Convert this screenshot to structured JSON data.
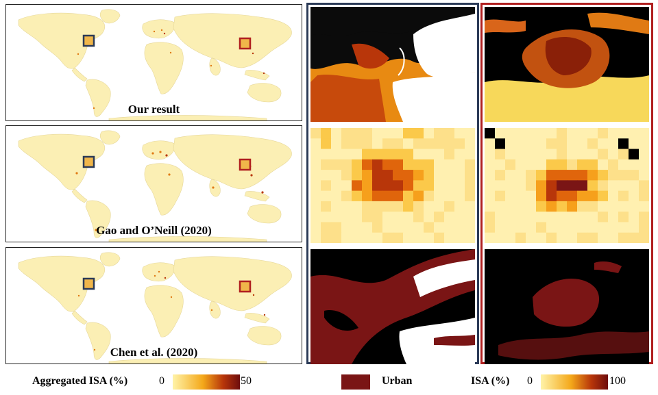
{
  "maps": [
    {
      "caption": "Our result"
    },
    {
      "caption": "Gao and O’Neill (2020)"
    },
    {
      "caption": "Chen et al. (2020)"
    }
  ],
  "zoom_columns": [
    {
      "region_marker": "blue box (North America)",
      "border_color": "#2b3a57"
    },
    {
      "region_marker": "red box (East Asia)",
      "border_color": "#b01f1f"
    }
  ],
  "legend": {
    "aggregated": {
      "label": "Aggregated ISA (%)",
      "min": "0",
      "max": "50"
    },
    "urban": {
      "label": "Urban",
      "color": "#7a1515"
    },
    "isa": {
      "label": "ISA (%)",
      "min": "0",
      "max": "100"
    }
  },
  "colors": {
    "land": "#fbefb4",
    "ocean": "#ffffff",
    "ramp_low": "#fff3a8",
    "ramp_mid": "#f4a81a",
    "ramp_high": "#6e0d0d",
    "blue_box": "#2b3a57",
    "red_box": "#b01f1f"
  }
}
